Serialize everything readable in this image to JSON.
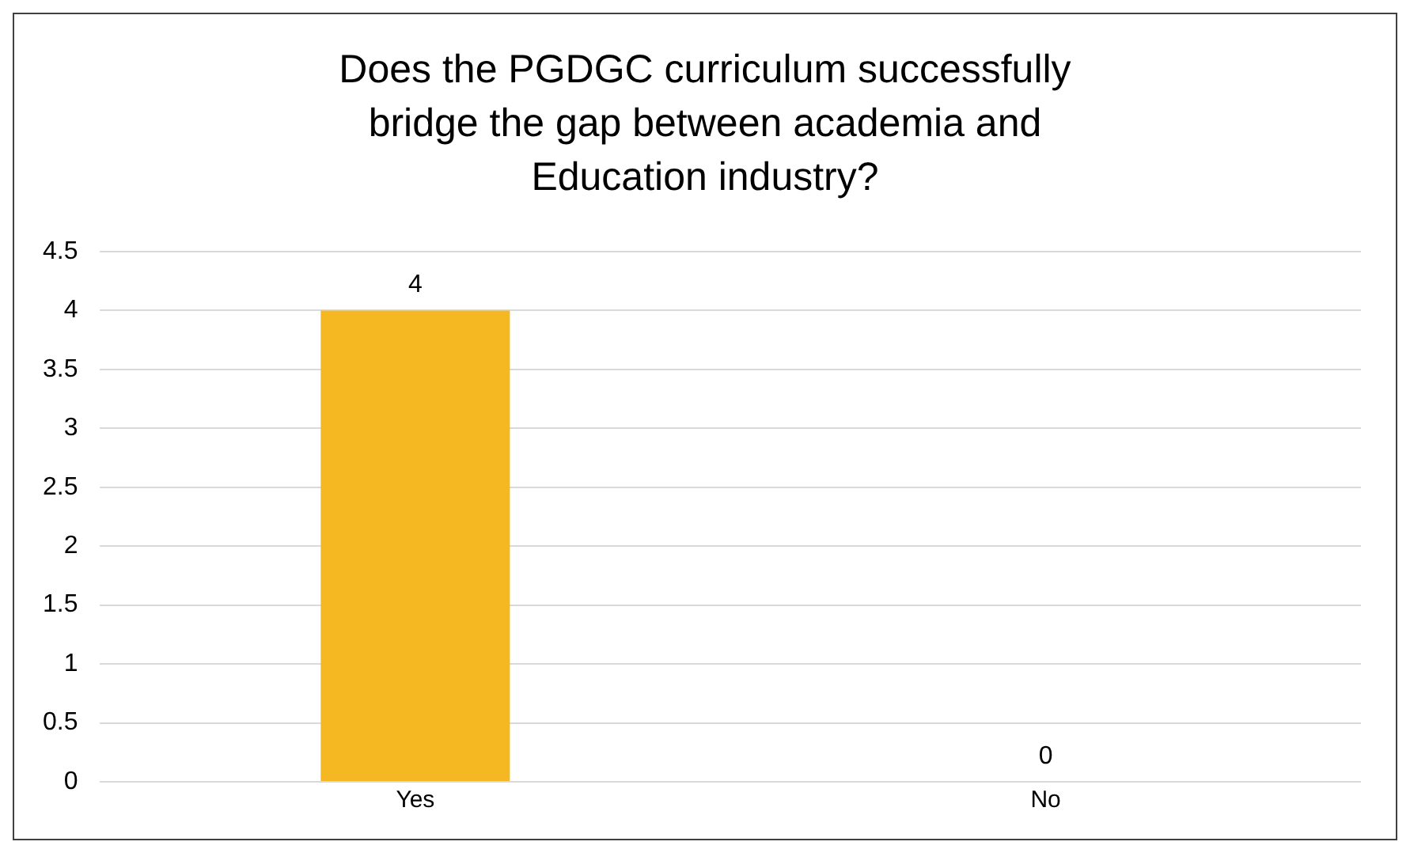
{
  "chart_data": {
    "type": "bar",
    "title": "Does the PGDGC curriculum successfully bridge the gap between academia and Education industry?",
    "categories": [
      "Yes",
      "No"
    ],
    "values": [
      4,
      0
    ],
    "color": "#f5b823",
    "ylim": [
      0,
      4.5
    ],
    "yticks": [
      0,
      0.5,
      1,
      1.5,
      2,
      2.5,
      3,
      3.5,
      4,
      4.5
    ],
    "grid": "y",
    "data_labels": true,
    "legend": false
  }
}
